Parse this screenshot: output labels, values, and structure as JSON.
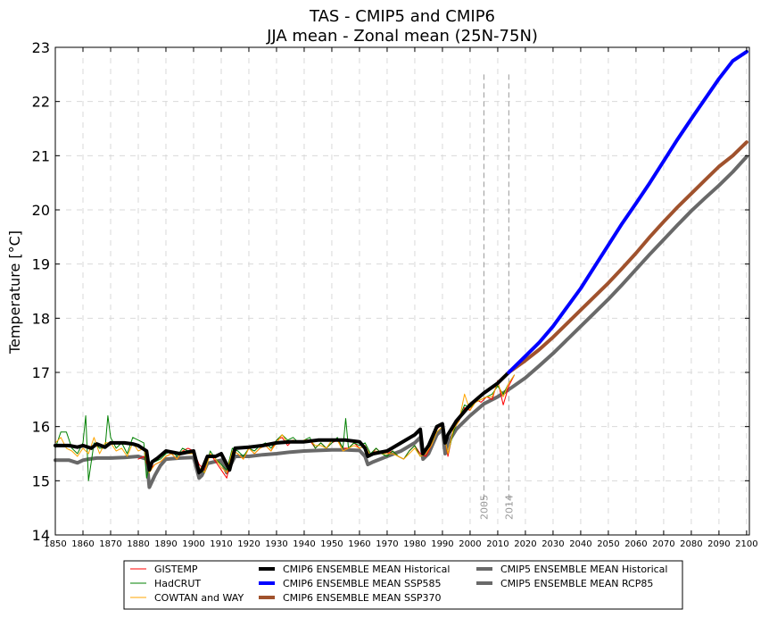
{
  "chart_data": {
    "type": "line",
    "title": "TAS - CMIP5 and CMIP6",
    "subtitle": "JJA mean - Zonal mean (25N-75N)",
    "ylabel": "Temperature [°C]",
    "xlabel": "",
    "xlim": [
      1850,
      2101
    ],
    "ylim": [
      14,
      23
    ],
    "grid": true,
    "legend_position": "bottom",
    "x_ticks": [
      "1850",
      "1860",
      "1870",
      "1880",
      "1890",
      "1900",
      "1910",
      "1920",
      "1930",
      "1940",
      "1950",
      "1960",
      "1970",
      "1980",
      "1990",
      "2000",
      "2010",
      "2020",
      "2030",
      "2040",
      "2050",
      "2060",
      "2070",
      "2080",
      "2090",
      "2100"
    ],
    "y_ticks": [
      "14",
      "15",
      "16",
      "17",
      "18",
      "19",
      "20",
      "21",
      "22",
      "23"
    ],
    "vertical_markers": [
      {
        "x": 2005,
        "label": "2005"
      },
      {
        "x": 2014,
        "label": "2014"
      }
    ],
    "series": [
      {
        "name": "CMIP5 ENSEMBLE MEAN Historical",
        "color": "#696969",
        "width": 4,
        "x": [
          1850,
          1855,
          1858,
          1860,
          1862,
          1865,
          1870,
          1875,
          1880,
          1883,
          1884,
          1886,
          1888,
          1890,
          1895,
          1900,
          1902,
          1903,
          1905,
          1910,
          1912,
          1915,
          1920,
          1925,
          1930,
          1935,
          1940,
          1945,
          1950,
          1955,
          1960,
          1962,
          1963,
          1965,
          1970,
          1975,
          1980,
          1982,
          1983,
          1985,
          1988,
          1990,
          1991,
          1992,
          1995,
          2000,
          2005
        ],
        "y": [
          15.38,
          15.38,
          15.33,
          15.38,
          15.4,
          15.42,
          15.42,
          15.43,
          15.45,
          15.4,
          14.88,
          15.1,
          15.28,
          15.4,
          15.42,
          15.43,
          15.05,
          15.1,
          15.32,
          15.38,
          15.15,
          15.45,
          15.45,
          15.48,
          15.5,
          15.53,
          15.55,
          15.56,
          15.57,
          15.57,
          15.56,
          15.45,
          15.3,
          15.35,
          15.45,
          15.55,
          15.7,
          15.8,
          15.4,
          15.5,
          15.85,
          15.95,
          15.5,
          15.7,
          15.95,
          16.2,
          16.42
        ]
      },
      {
        "name": "CMIP5 ENSEMBLE MEAN RCP85",
        "color": "#696969",
        "width": 4,
        "x": [
          2005,
          2010,
          2015,
          2020,
          2025,
          2030,
          2035,
          2040,
          2045,
          2050,
          2055,
          2060,
          2065,
          2070,
          2075,
          2080,
          2085,
          2090,
          2095,
          2100
        ],
        "y": [
          16.42,
          16.55,
          16.72,
          16.9,
          17.12,
          17.35,
          17.6,
          17.85,
          18.1,
          18.35,
          18.62,
          18.9,
          19.18,
          19.45,
          19.72,
          19.98,
          20.22,
          20.45,
          20.7,
          20.98
        ]
      },
      {
        "name": "GISTEMP",
        "color": "#ff0000",
        "width": 1,
        "x": [
          1880,
          1882,
          1884,
          1886,
          1888,
          1890,
          1892,
          1894,
          1896,
          1898,
          1900,
          1902,
          1904,
          1906,
          1908,
          1910,
          1912,
          1914,
          1916,
          1918,
          1920,
          1922,
          1924,
          1926,
          1928,
          1930,
          1932,
          1934,
          1936,
          1938,
          1940,
          1942,
          1944,
          1946,
          1948,
          1950,
          1952,
          1954,
          1956,
          1958,
          1960,
          1962,
          1964,
          1966,
          1968,
          1970,
          1972,
          1974,
          1976,
          1978,
          1980,
          1982,
          1984,
          1986,
          1988,
          1990,
          1992,
          1994,
          1996,
          1998,
          2000,
          2002,
          2004,
          2006,
          2008,
          2010,
          2012,
          2014,
          2016
        ],
        "y": [
          15.4,
          15.45,
          15.2,
          15.3,
          15.35,
          15.45,
          15.5,
          15.4,
          15.55,
          15.6,
          15.55,
          15.3,
          15.2,
          15.5,
          15.35,
          15.2,
          15.05,
          15.55,
          15.5,
          15.4,
          15.6,
          15.5,
          15.6,
          15.65,
          15.55,
          15.75,
          15.8,
          15.65,
          15.75,
          15.7,
          15.7,
          15.75,
          15.6,
          15.7,
          15.6,
          15.7,
          15.75,
          15.6,
          15.6,
          15.7,
          15.6,
          15.65,
          15.45,
          15.6,
          15.5,
          15.5,
          15.55,
          15.45,
          15.4,
          15.55,
          15.65,
          15.5,
          15.45,
          15.65,
          15.95,
          16.05,
          15.45,
          15.95,
          16.1,
          16.35,
          16.3,
          16.5,
          16.45,
          16.55,
          16.5,
          16.85,
          16.4,
          16.75,
          16.95
        ]
      },
      {
        "name": "HadCRUT",
        "color": "#008000",
        "width": 1,
        "x": [
          1850,
          1852,
          1854,
          1856,
          1858,
          1860,
          1861,
          1862,
          1864,
          1866,
          1868,
          1869,
          1870,
          1872,
          1874,
          1876,
          1878,
          1880,
          1882,
          1883,
          1884,
          1886,
          1888,
          1890,
          1892,
          1894,
          1896,
          1898,
          1900,
          1902,
          1904,
          1906,
          1908,
          1910,
          1912,
          1914,
          1916,
          1918,
          1920,
          1922,
          1924,
          1926,
          1928,
          1930,
          1932,
          1934,
          1936,
          1938,
          1940,
          1942,
          1944,
          1946,
          1948,
          1950,
          1952,
          1954,
          1955,
          1956,
          1958,
          1960,
          1962,
          1964,
          1966,
          1968,
          1970,
          1972,
          1974,
          1976,
          1978,
          1980,
          1982,
          1984,
          1986,
          1988,
          1990,
          1992,
          1994,
          1996,
          1998,
          2000,
          2002,
          2004,
          2006,
          2008,
          2010,
          2012,
          2014,
          2016
        ],
        "y": [
          15.6,
          15.9,
          15.9,
          15.6,
          15.5,
          15.7,
          16.2,
          15.0,
          15.7,
          15.6,
          15.6,
          16.2,
          15.8,
          15.6,
          15.7,
          15.5,
          15.8,
          15.75,
          15.7,
          15.05,
          15.3,
          15.35,
          15.4,
          15.5,
          15.55,
          15.45,
          15.6,
          15.55,
          15.5,
          15.2,
          15.15,
          15.55,
          15.4,
          15.3,
          15.2,
          15.6,
          15.55,
          15.45,
          15.6,
          15.55,
          15.65,
          15.7,
          15.6,
          15.75,
          15.85,
          15.75,
          15.8,
          15.7,
          15.75,
          15.8,
          15.6,
          15.7,
          15.6,
          15.7,
          15.8,
          15.6,
          16.15,
          15.6,
          15.7,
          15.65,
          15.7,
          15.5,
          15.6,
          15.5,
          15.45,
          15.55,
          15.45,
          15.4,
          15.55,
          15.65,
          15.45,
          15.55,
          15.7,
          15.9,
          16.0,
          15.5,
          15.9,
          16.15,
          16.4,
          16.35,
          16.45,
          16.5,
          16.55,
          16.6,
          16.75,
          16.6,
          16.8,
          16.95
        ]
      },
      {
        "name": "COWTAN and WAY",
        "color": "#ffa500",
        "width": 1,
        "x": [
          1850,
          1852,
          1854,
          1856,
          1858,
          1860,
          1862,
          1864,
          1866,
          1868,
          1870,
          1872,
          1874,
          1876,
          1878,
          1880,
          1882,
          1884,
          1886,
          1888,
          1890,
          1892,
          1894,
          1896,
          1898,
          1900,
          1902,
          1904,
          1906,
          1908,
          1910,
          1912,
          1914,
          1916,
          1918,
          1920,
          1922,
          1924,
          1926,
          1928,
          1930,
          1932,
          1934,
          1936,
          1938,
          1940,
          1942,
          1944,
          1946,
          1948,
          1950,
          1952,
          1954,
          1956,
          1958,
          1960,
          1962,
          1964,
          1966,
          1968,
          1970,
          1972,
          1974,
          1976,
          1978,
          1980,
          1982,
          1984,
          1986,
          1988,
          1990,
          1992,
          1994,
          1996,
          1998,
          2000,
          2002,
          2004,
          2006,
          2008,
          2010,
          2012,
          2014,
          2016
        ],
        "y": [
          15.7,
          15.8,
          15.6,
          15.55,
          15.45,
          15.6,
          15.5,
          15.8,
          15.5,
          15.7,
          15.7,
          15.55,
          15.6,
          15.45,
          15.7,
          15.55,
          15.6,
          15.15,
          15.3,
          15.35,
          15.45,
          15.5,
          15.4,
          15.55,
          15.5,
          15.5,
          15.25,
          15.15,
          15.5,
          15.4,
          15.25,
          15.15,
          15.55,
          15.5,
          15.4,
          15.6,
          15.5,
          15.6,
          15.65,
          15.55,
          15.7,
          15.85,
          15.7,
          15.75,
          15.7,
          15.75,
          15.75,
          15.65,
          15.65,
          15.6,
          15.75,
          15.75,
          15.55,
          15.6,
          15.65,
          15.6,
          15.65,
          15.45,
          15.55,
          15.5,
          15.5,
          15.5,
          15.45,
          15.4,
          15.5,
          15.6,
          15.45,
          15.5,
          15.65,
          15.9,
          16.0,
          15.5,
          15.95,
          16.1,
          16.6,
          16.3,
          16.45,
          16.5,
          16.55,
          16.55,
          16.8,
          16.55,
          16.8,
          16.95
        ]
      },
      {
        "name": "CMIP6 ENSEMBLE MEAN Historical",
        "color": "#000000",
        "width": 4,
        "x": [
          1850,
          1855,
          1858,
          1860,
          1863,
          1865,
          1868,
          1870,
          1875,
          1878,
          1880,
          1883,
          1884,
          1885,
          1887,
          1890,
          1895,
          1900,
          1902,
          1903,
          1905,
          1908,
          1910,
          1913,
          1915,
          1920,
          1925,
          1930,
          1935,
          1940,
          1945,
          1950,
          1955,
          1960,
          1962,
          1963,
          1965,
          1970,
          1975,
          1980,
          1982,
          1983,
          1985,
          1988,
          1990,
          1991,
          1992,
          1995,
          2000,
          2005,
          2010,
          2014
        ],
        "y": [
          15.65,
          15.65,
          15.62,
          15.65,
          15.6,
          15.68,
          15.62,
          15.7,
          15.7,
          15.68,
          15.65,
          15.55,
          15.2,
          15.35,
          15.42,
          15.55,
          15.5,
          15.55,
          15.15,
          15.2,
          15.45,
          15.45,
          15.5,
          15.2,
          15.6,
          15.62,
          15.65,
          15.7,
          15.72,
          15.72,
          15.75,
          15.75,
          15.75,
          15.72,
          15.6,
          15.45,
          15.5,
          15.55,
          15.7,
          15.85,
          15.95,
          15.5,
          15.65,
          16.0,
          16.05,
          15.7,
          15.85,
          16.1,
          16.4,
          16.62,
          16.8,
          17.0
        ]
      },
      {
        "name": "CMIP6 ENSEMBLE MEAN SSP370",
        "color": "#a0522d",
        "width": 4,
        "x": [
          2014,
          2020,
          2025,
          2030,
          2035,
          2040,
          2045,
          2050,
          2055,
          2060,
          2065,
          2070,
          2075,
          2080,
          2085,
          2090,
          2095,
          2100
        ],
        "y": [
          17.0,
          17.22,
          17.42,
          17.65,
          17.9,
          18.15,
          18.4,
          18.65,
          18.92,
          19.2,
          19.5,
          19.78,
          20.05,
          20.3,
          20.55,
          20.8,
          21.0,
          21.25
        ]
      },
      {
        "name": "CMIP6 ENSEMBLE MEAN SSP585",
        "color": "#0000ff",
        "width": 4,
        "x": [
          2014,
          2020,
          2025,
          2030,
          2035,
          2040,
          2045,
          2050,
          2055,
          2060,
          2065,
          2070,
          2075,
          2080,
          2085,
          2090,
          2095,
          2100
        ],
        "y": [
          17.0,
          17.3,
          17.55,
          17.85,
          18.2,
          18.55,
          18.95,
          19.35,
          19.75,
          20.12,
          20.5,
          20.9,
          21.3,
          21.68,
          22.05,
          22.42,
          22.75,
          22.92
        ]
      }
    ],
    "legend": [
      [
        "GISTEMP",
        "CMIP6 ENSEMBLE MEAN Historical",
        "CMIP5 ENSEMBLE MEAN Historical"
      ],
      [
        "HadCRUT",
        "CMIP6 ENSEMBLE MEAN SSP585",
        "CMIP5 ENSEMBLE MEAN RCP85"
      ],
      [
        "COWTAN and WAY",
        "CMIP6 ENSEMBLE MEAN SSP370",
        ""
      ]
    ]
  }
}
